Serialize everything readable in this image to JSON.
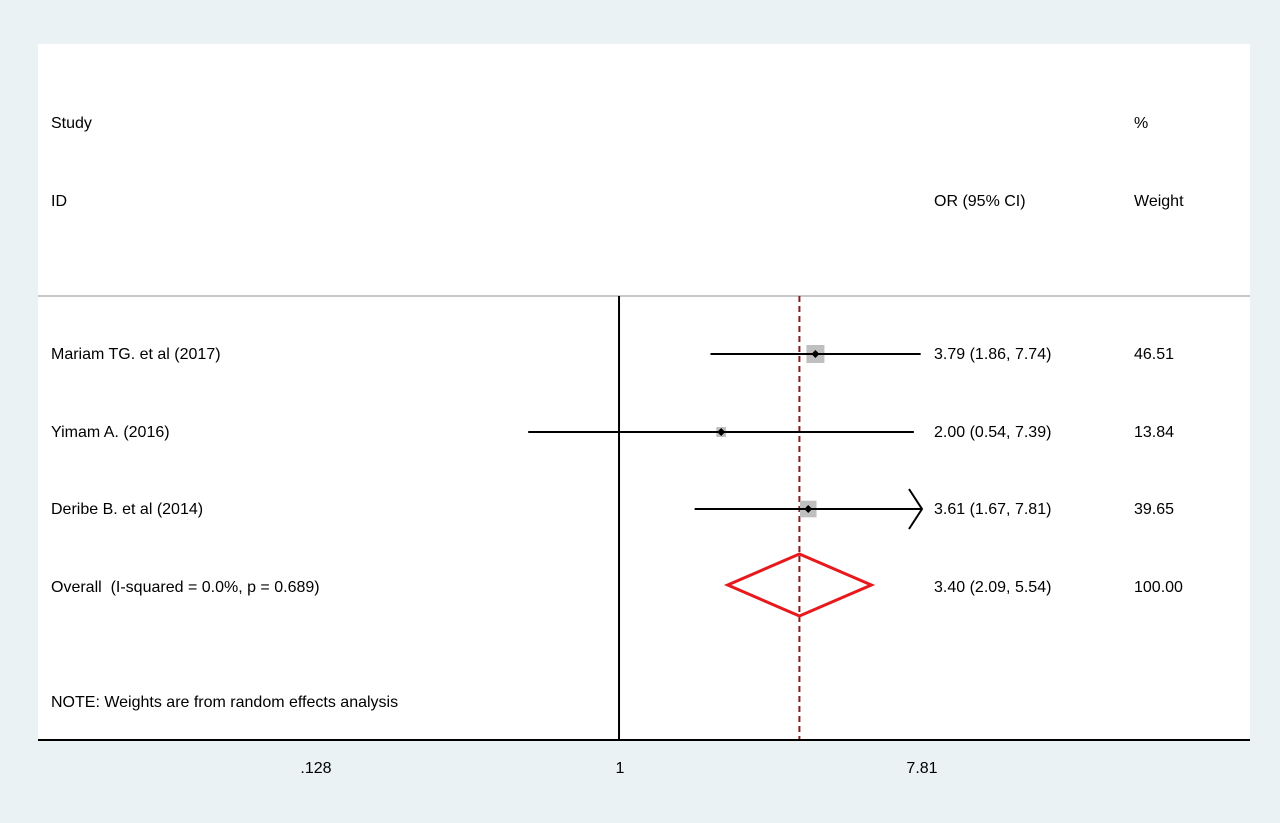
{
  "chart_data": {
    "type": "forest",
    "columns": {
      "study_header_1": "Study",
      "study_header_2": "ID",
      "estimate_header": "OR (95% CI)",
      "weight_header_1": "%",
      "weight_header_2": "Weight"
    },
    "studies": [
      {
        "label": "Mariam TG. et al (2017)",
        "or": 3.79,
        "lower": 1.86,
        "upper": 7.74,
        "ci_text": "3.79 (1.86, 7.74)",
        "weight": 46.51,
        "weight_text": "46.51",
        "arrow_right": false
      },
      {
        "label": "Yimam A. (2016)",
        "or": 2.0,
        "lower": 0.54,
        "upper": 7.39,
        "ci_text": "2.00 (0.54, 7.39)",
        "weight": 13.84,
        "weight_text": "13.84",
        "arrow_right": false
      },
      {
        "label": "Deribe B. et al (2014)",
        "or": 3.61,
        "lower": 1.67,
        "upper": 7.81,
        "ci_text": "3.61 (1.67, 7.81)",
        "weight": 39.65,
        "weight_text": "39.65",
        "arrow_right": true
      }
    ],
    "overall": {
      "label": "Overall  (I-squared = 0.0%, p = 0.689)",
      "or": 3.4,
      "lower": 2.09,
      "upper": 5.54,
      "ci_text": "3.40 (2.09, 5.54)",
      "weight_text": "100.00"
    },
    "note": "NOTE: Weights are from random effects analysis",
    "x_axis": {
      "scale": "log",
      "range": [
        0.128,
        7.81
      ],
      "ticks": [
        {
          "value": 0.128,
          "label": ".128"
        },
        {
          "value": 1,
          "label": "1"
        },
        {
          "value": 7.81,
          "label": "7.81"
        }
      ],
      "null_line": 1
    },
    "colors": {
      "background": "#eaf2f3",
      "panel": "#ffffff",
      "ci_line": "#000000",
      "weight_box": "#bfbfbf",
      "overall_diamond": "#e8191d",
      "overall_line": "#8b1a1a",
      "divider": "#c8c8c8"
    }
  }
}
